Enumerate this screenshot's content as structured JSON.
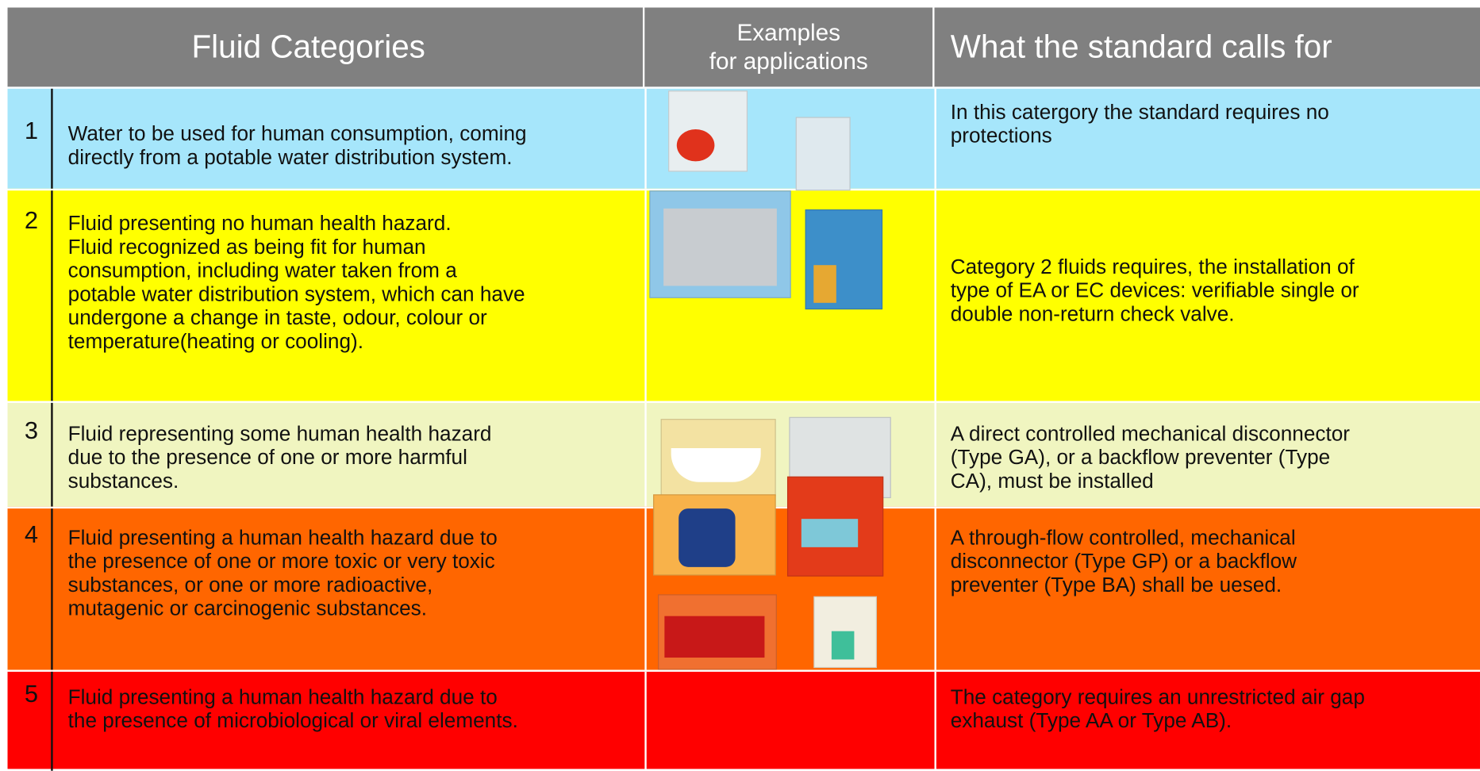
{
  "header": {
    "fluid_categories": "Fluid Categories",
    "examples": [
      "Examples",
      "for applications"
    ],
    "standard": "What the standard calls for"
  },
  "rows": [
    {
      "number": 1,
      "description": [
        "Water to be used for human consumption, coming",
        "directly from a potable water distribution system."
      ],
      "requirement": [
        "In this catergory the standard requires no",
        "protections"
      ]
    },
    {
      "number": 2,
      "description": [
        "Fluid presenting no human health hazard.",
        "Fluid recognized as being fit for human",
        "consumption, including water taken from a",
        "potable water distribution system, which can have",
        "undergone a change in taste, odour,  colour or",
        "temperature(heating or cooling)."
      ],
      "requirement": [
        "Category 2 fluids requires, the installation of",
        "type of EA or EC devices:  verifiable single or",
        "double non-return check valve."
      ]
    },
    {
      "number": 3,
      "description": [
        "Fluid representing some human health hazard",
        "due to the presence of one or more harmful",
        "substances."
      ],
      "requirement": [
        "A direct controlled mechanical disconnector",
        "(Type GA), or a backflow preventer (Type",
        "CA), must be installed"
      ]
    },
    {
      "number": 4,
      "description": [
        "Fluid presenting a human health hazard due to",
        "the presence of one or more toxic or very toxic",
        "substances, or one or more radioactive,",
        "mutagenic or carcinogenic substances."
      ],
      "requirement": [
        "A through-flow controlled, mechanical",
        "disconnector (Type GP) or a backflow",
        "preventer (Type BA) shall be uesed."
      ]
    },
    {
      "number": 5,
      "description": [
        "Fluid presenting a human health hazard due to",
        "the presence of microbiological or viral elements."
      ],
      "requirement": [
        "The category requires an unrestricted air gap",
        "exhaust (Type AA or Type AB)."
      ]
    }
  ]
}
